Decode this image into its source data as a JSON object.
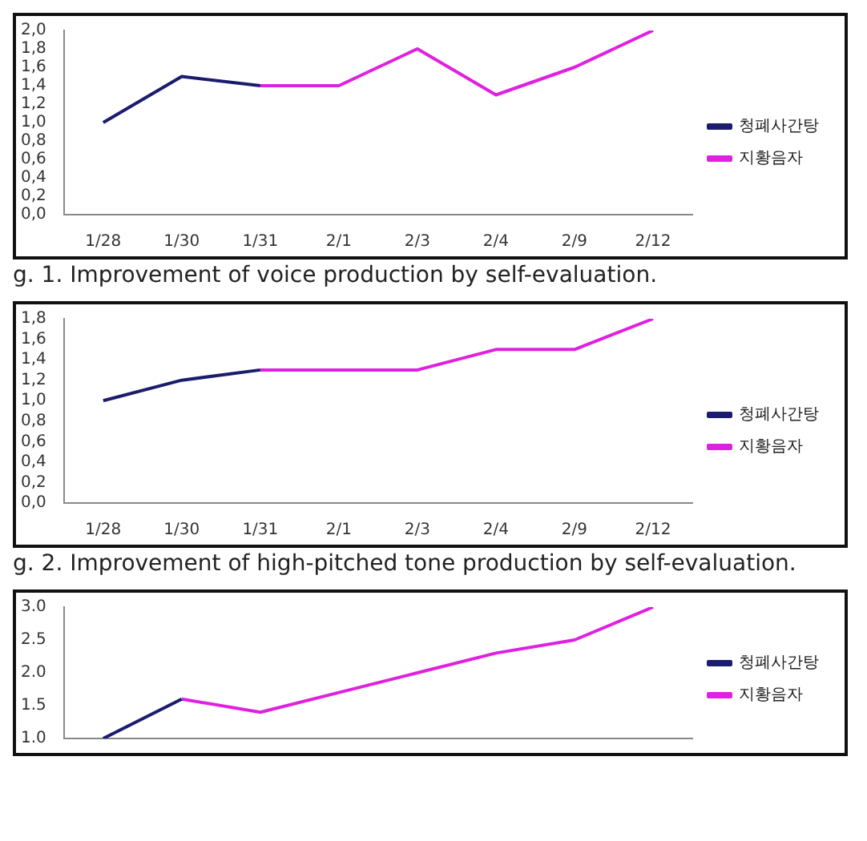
{
  "chart_data": [
    {
      "type": "line",
      "categories": [
        "1/28",
        "1/30",
        "1/31",
        "2/1",
        "2/3",
        "2/4",
        "2/9",
        "2/12"
      ],
      "series": [
        {
          "name": "청폐사간탕",
          "color": "#1c1c6e",
          "values": [
            1.0,
            1.5,
            1.4,
            null,
            null,
            null,
            null,
            null
          ]
        },
        {
          "name": "지황음자",
          "color": "#e020e0",
          "values": [
            null,
            null,
            1.4,
            1.4,
            1.8,
            1.3,
            1.6,
            2.0
          ]
        }
      ],
      "ylim": [
        0,
        2
      ],
      "yticks": [
        {
          "value": 0,
          "label": "0,0"
        },
        {
          "value": 0.2,
          "label": "0,2"
        },
        {
          "value": 0.4,
          "label": "0,4"
        },
        {
          "value": 0.6,
          "label": "0,6"
        },
        {
          "value": 0.8,
          "label": "0,8"
        },
        {
          "value": 1,
          "label": "1,0"
        },
        {
          "value": 1.2,
          "label": "1,2"
        },
        {
          "value": 1.4,
          "label": "1,4"
        },
        {
          "value": 1.6,
          "label": "1,6"
        },
        {
          "value": 1.8,
          "label": "1,8"
        },
        {
          "value": 2,
          "label": "2,0"
        }
      ],
      "grid": false,
      "legend": "right",
      "marker": "none",
      "line_style": "solid",
      "annotations": [
        "g. 1. Improvement of voice production by self-evaluation."
      ]
    },
    {
      "type": "line",
      "categories": [
        "1/28",
        "1/30",
        "1/31",
        "2/1",
        "2/3",
        "2/4",
        "2/9",
        "2/12"
      ],
      "series": [
        {
          "name": "청폐사간탕",
          "color": "#1c1c6e",
          "values": [
            1.0,
            1.2,
            1.3,
            null,
            null,
            null,
            null,
            null
          ]
        },
        {
          "name": "지황음자",
          "color": "#e020e0",
          "values": [
            null,
            null,
            1.3,
            1.3,
            1.3,
            1.5,
            1.5,
            1.8
          ]
        }
      ],
      "ylim": [
        0,
        1.8
      ],
      "yticks": [
        {
          "value": 0,
          "label": "0,0"
        },
        {
          "value": 0.2,
          "label": "0,2"
        },
        {
          "value": 0.4,
          "label": "0,4"
        },
        {
          "value": 0.6,
          "label": "0,6"
        },
        {
          "value": 0.8,
          "label": "0,8"
        },
        {
          "value": 1,
          "label": "1,0"
        },
        {
          "value": 1.2,
          "label": "1,2"
        },
        {
          "value": 1.4,
          "label": "1,4"
        },
        {
          "value": 1.6,
          "label": "1,6"
        },
        {
          "value": 1.8,
          "label": "1,8"
        }
      ],
      "grid": false,
      "legend": "right",
      "marker": "none",
      "line_style": "solid",
      "annotations": [
        "g. 2. Improvement of high-pitched tone production by self-evaluation."
      ]
    },
    {
      "type": "line",
      "categories": [
        null,
        null,
        null,
        null,
        null,
        null,
        null,
        null
      ],
      "series": [
        {
          "name": "청폐사간탕",
          "color": "#1c1c6e",
          "values": [
            1.0,
            1.6,
            null,
            null,
            null,
            null,
            null,
            null
          ]
        },
        {
          "name": "지황음자",
          "color": "#e020e0",
          "values": [
            null,
            1.6,
            1.4,
            1.7,
            2.0,
            2.3,
            2.5,
            3.0
          ]
        }
      ],
      "ylim": [
        1,
        3
      ],
      "yticks": [
        {
          "value": 1,
          "label": "1.0"
        },
        {
          "value": 1.5,
          "label": "1.5"
        },
        {
          "value": 2,
          "label": "2.0"
        },
        {
          "value": 2.5,
          "label": "2.5"
        },
        {
          "value": 3,
          "label": "3.0"
        }
      ],
      "grid": false,
      "legend": "right",
      "marker": "none",
      "line_style": "solid",
      "tick_labels": "y"
    }
  ]
}
